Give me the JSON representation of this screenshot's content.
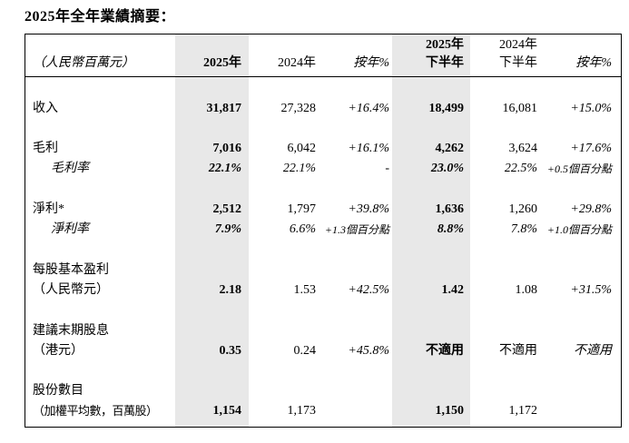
{
  "title": "2025年全年業績摘要：",
  "colors": {
    "shade": "#E8E8E8",
    "border": "#000000",
    "text": "#000000",
    "background": "#FFFFFF"
  },
  "table": {
    "header": {
      "cells": [
        [
          {
            "t": "（人民幣百萬元）",
            "i": true
          }
        ],
        [
          {
            "t": "2025年",
            "b": true
          }
        ],
        [
          {
            "t": "2024年"
          }
        ],
        [
          {
            "t": "按年%",
            "i": true
          }
        ],
        [
          {
            "t": "2025年",
            "b": true
          },
          {
            "t": "下半年",
            "b": true
          }
        ],
        [
          {
            "t": "2024年"
          },
          {
            "t": "下半年"
          }
        ],
        [
          {
            "t": "按年%",
            "i": true
          }
        ]
      ]
    },
    "rows": [
      {
        "cells": [
          [
            {
              "t": "收入"
            }
          ],
          [
            {
              "t": "31,817",
              "b": true
            }
          ],
          [
            {
              "t": "27,328"
            }
          ],
          [
            {
              "t": "+16.4%",
              "i": true
            }
          ],
          [
            {
              "t": "18,499",
              "b": true
            }
          ],
          [
            {
              "t": "16,081"
            }
          ],
          [
            {
              "t": "+15.0%",
              "i": true
            }
          ]
        ]
      },
      {
        "cells": [
          [
            {
              "t": "毛利"
            },
            {
              "t": "毛利率",
              "i": true,
              "ind": true
            }
          ],
          [
            {
              "t": "7,016",
              "b": true
            },
            {
              "t": "22.1%",
              "b": true,
              "i": true
            }
          ],
          [
            {
              "t": "6,042"
            },
            {
              "t": "22.1%",
              "i": true
            }
          ],
          [
            {
              "t": "+16.1%",
              "i": true
            },
            {
              "t": "-"
            }
          ],
          [
            {
              "t": "4,262",
              "b": true
            },
            {
              "t": "23.0%",
              "b": true,
              "i": true
            }
          ],
          [
            {
              "t": "3,624"
            },
            {
              "t": "22.5%",
              "i": true
            }
          ],
          [
            {
              "t": "+17.6%",
              "i": true
            },
            {
              "t": "+0.5個百分點",
              "i": true,
              "sm": true
            }
          ]
        ]
      },
      {
        "cells": [
          [
            {
              "t": "淨利*"
            },
            {
              "t": "淨利率",
              "i": true,
              "ind": true
            }
          ],
          [
            {
              "t": "2,512",
              "b": true
            },
            {
              "t": "7.9%",
              "b": true,
              "i": true
            }
          ],
          [
            {
              "t": "1,797"
            },
            {
              "t": "6.6%",
              "i": true
            }
          ],
          [
            {
              "t": "+39.8%",
              "i": true
            },
            {
              "t": "+1.3個百分點",
              "i": true,
              "sm": true
            }
          ],
          [
            {
              "t": "1,636",
              "b": true
            },
            {
              "t": "8.8%",
              "b": true,
              "i": true
            }
          ],
          [
            {
              "t": "1,260"
            },
            {
              "t": "7.8%",
              "i": true
            }
          ],
          [
            {
              "t": "+29.8%",
              "i": true
            },
            {
              "t": "+1.0個百分點",
              "i": true,
              "sm": true
            }
          ]
        ]
      },
      {
        "cells": [
          [
            {
              "t": "每股基本盈利"
            },
            {
              "t": "（人民幣元）"
            }
          ],
          [
            {
              "t": "2.18",
              "b": true
            }
          ],
          [
            {
              "t": "1.53"
            }
          ],
          [
            {
              "t": "+42.5%",
              "i": true
            }
          ],
          [
            {
              "t": "1.42",
              "b": true
            }
          ],
          [
            {
              "t": "1.08"
            }
          ],
          [
            {
              "t": "+31.5%",
              "i": true
            }
          ]
        ]
      },
      {
        "cells": [
          [
            {
              "t": "建議末期股息"
            },
            {
              "t": "（港元）"
            }
          ],
          [
            {
              "t": "0.35",
              "b": true
            }
          ],
          [
            {
              "t": "0.24"
            }
          ],
          [
            {
              "t": "+45.8%",
              "i": true
            }
          ],
          [
            {
              "t": "不適用",
              "b": true
            }
          ],
          [
            {
              "t": "不適用"
            }
          ],
          [
            {
              "t": "不適用",
              "i": true
            }
          ]
        ]
      },
      {
        "cells": [
          [
            {
              "t": "股份數目"
            },
            {
              "t": "（加權平均數，百萬股）",
              "fit": true
            }
          ],
          [
            {
              "t": "1,154",
              "b": true
            }
          ],
          [
            {
              "t": "1,173"
            }
          ],
          [],
          [
            {
              "t": "1,150",
              "b": true
            }
          ],
          [
            {
              "t": "1,172"
            }
          ],
          []
        ]
      }
    ]
  }
}
